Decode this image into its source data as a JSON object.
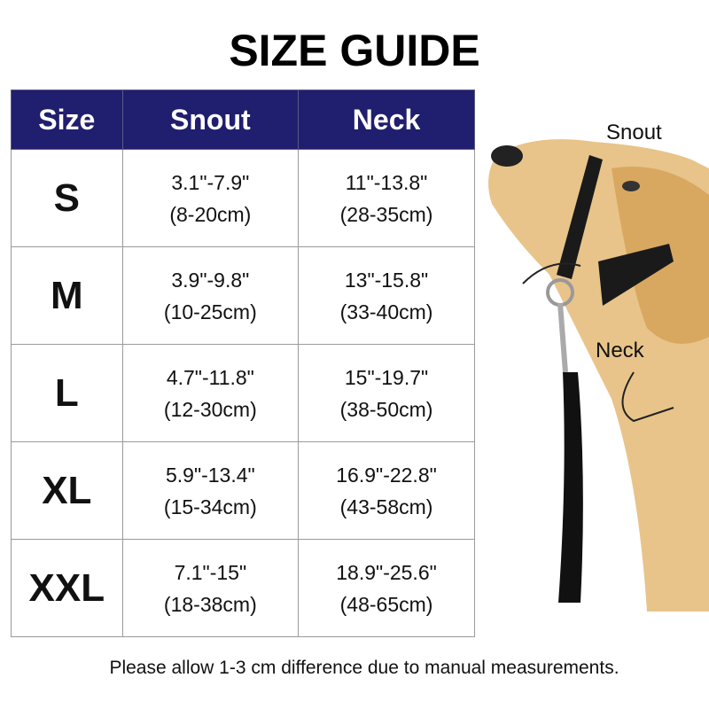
{
  "title": "SIZE GUIDE",
  "table": {
    "headers": [
      "Size",
      "Snout",
      "Neck"
    ],
    "rows": [
      {
        "size": "S",
        "snout_in": "3.1\"-7.9\"",
        "snout_cm": "(8-20cm)",
        "neck_in": "11\"-13.8\"",
        "neck_cm": "(28-35cm)"
      },
      {
        "size": "M",
        "snout_in": "3.9\"-9.8\"",
        "snout_cm": "(10-25cm)",
        "neck_in": "13\"-15.8\"",
        "neck_cm": "(33-40cm)"
      },
      {
        "size": "L",
        "snout_in": "4.7\"-11.8\"",
        "snout_cm": "(12-30cm)",
        "neck_in": "15\"-19.7\"",
        "neck_cm": "(38-50cm)"
      },
      {
        "size": "XL",
        "snout_in": "5.9\"-13.4\"",
        "snout_cm": "(15-34cm)",
        "neck_in": "16.9\"-22.8\"",
        "neck_cm": "(43-58cm)"
      },
      {
        "size": "XXL",
        "snout_in": "7.1\"-15\"",
        "snout_cm": "(18-38cm)",
        "neck_in": "18.9\"-25.6\"",
        "neck_cm": "(48-65cm)"
      }
    ],
    "header_color": "#201e6e"
  },
  "illustration": {
    "snout_label": "Snout",
    "neck_label": "Neck"
  },
  "note": "Please allow 1-3 cm difference due to manual measurements."
}
